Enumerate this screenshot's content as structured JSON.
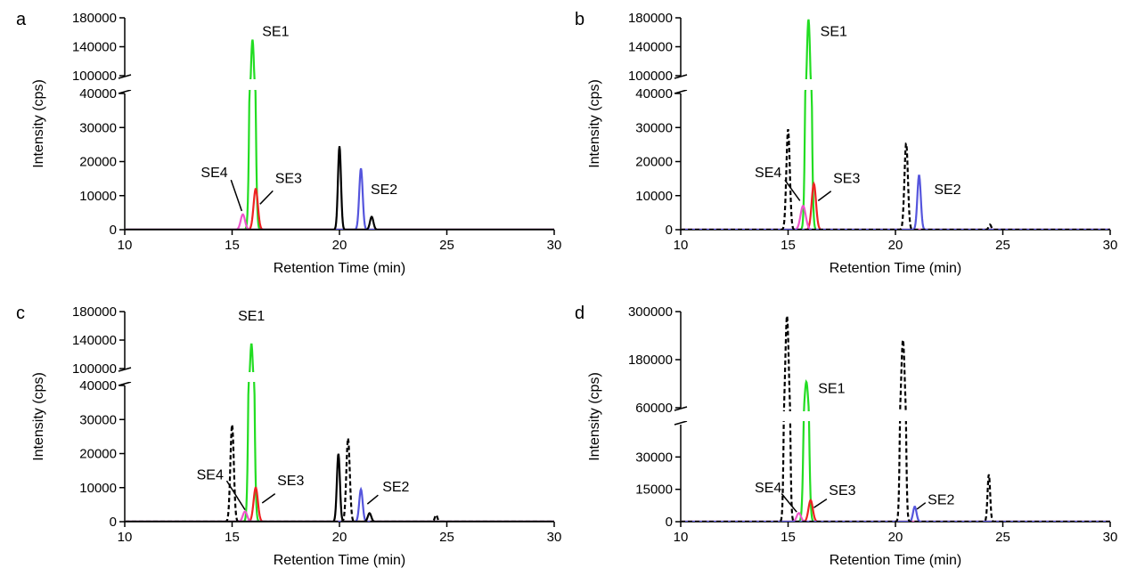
{
  "chart_data": [
    {
      "panel": "a",
      "type": "line",
      "xlabel": "Retention Time (min)",
      "ylabel": "Intensity (cps)",
      "xlim": [
        10,
        30
      ],
      "x_ticks": [
        "10",
        "15",
        "20",
        "25",
        "30"
      ],
      "y_axis_break": true,
      "y_lower": {
        "range": [
          0,
          40000
        ],
        "ticks": [
          "0",
          "10000",
          "20000",
          "30000",
          "40000"
        ]
      },
      "y_upper": {
        "range": [
          100000,
          180000
        ],
        "ticks": [
          "100000",
          "140000",
          "180000"
        ]
      },
      "series": [
        {
          "color": "#22dd22",
          "dashed": false,
          "peaks": [
            {
              "x": 15.95,
              "y": 150000,
              "w": 0.09
            }
          ]
        },
        {
          "color": "#ee2222",
          "dashed": false,
          "peaks": [
            {
              "x": 16.1,
              "y": 12000,
              "w": 0.1
            }
          ]
        },
        {
          "color": "#ee55cc",
          "dashed": false,
          "peaks": [
            {
              "x": 15.5,
              "y": 4500,
              "w": 0.1
            }
          ]
        },
        {
          "color": "#5555dd",
          "dashed": false,
          "peaks": [
            {
              "x": 21.0,
              "y": 18000,
              "w": 0.08
            }
          ]
        },
        {
          "color": "#000000",
          "dashed": false,
          "peaks": [
            {
              "x": 20.0,
              "y": 24500,
              "w": 0.07
            },
            {
              "x": 21.5,
              "y": 3800,
              "w": 0.08
            }
          ]
        }
      ],
      "annotations": [
        {
          "text": "SE1",
          "x": 16.4,
          "y": 162000,
          "anchor": "start"
        },
        {
          "text": "SE2",
          "x": 21.45,
          "y": 12000,
          "anchor": "start"
        },
        {
          "text": "SE3",
          "x": 17.0,
          "y": 15300,
          "anchor": "start",
          "line": [
            16.9,
            11400,
            16.3,
            7500
          ]
        },
        {
          "text": "SE4",
          "x": 14.8,
          "y": 17000,
          "anchor": "end",
          "line": [
            14.95,
            14600,
            15.45,
            5500
          ]
        }
      ]
    },
    {
      "panel": "b",
      "type": "line",
      "xlabel": "Retention Time (min)",
      "ylabel": "Intensity (cps)",
      "xlim": [
        10,
        30
      ],
      "x_ticks": [
        "10",
        "15",
        "20",
        "25",
        "30"
      ],
      "y_axis_break": true,
      "y_lower": {
        "range": [
          0,
          40000
        ],
        "ticks": [
          "0",
          "10000",
          "20000",
          "30000",
          "40000"
        ]
      },
      "y_upper": {
        "range": [
          100000,
          180000
        ],
        "ticks": [
          "100000",
          "140000",
          "180000"
        ]
      },
      "series": [
        {
          "color": "#22dd22",
          "dashed": false,
          "peaks": [
            {
              "x": 15.95,
              "y": 178000,
              "w": 0.09
            }
          ]
        },
        {
          "color": "#ee2222",
          "dashed": false,
          "peaks": [
            {
              "x": 16.2,
              "y": 13500,
              "w": 0.1
            }
          ]
        },
        {
          "color": "#ee55cc",
          "dashed": false,
          "peaks": [
            {
              "x": 15.7,
              "y": 7000,
              "w": 0.12
            }
          ]
        },
        {
          "color": "#5555dd",
          "dashed": false,
          "peaks": [
            {
              "x": 21.1,
              "y": 16000,
              "w": 0.08
            }
          ]
        },
        {
          "color": "#000000",
          "dashed": true,
          "peaks": [
            {
              "x": 15.0,
              "y": 29500,
              "w": 0.08
            },
            {
              "x": 20.5,
              "y": 25500,
              "w": 0.08
            },
            {
              "x": 24.4,
              "y": 1500,
              "w": 0.06
            }
          ]
        }
      ],
      "annotations": [
        {
          "text": "SE1",
          "x": 16.5,
          "y": 162000,
          "anchor": "start"
        },
        {
          "text": "SE2",
          "x": 21.8,
          "y": 12000,
          "anchor": "start"
        },
        {
          "text": "SE3",
          "x": 17.1,
          "y": 15300,
          "anchor": "start",
          "line": [
            17.0,
            11300,
            16.4,
            8500
          ]
        },
        {
          "text": "SE4",
          "x": 14.7,
          "y": 17000,
          "anchor": "end",
          "line": [
            14.85,
            14600,
            15.55,
            8500
          ]
        }
      ]
    },
    {
      "panel": "c",
      "type": "line",
      "xlabel": "Retention Time (min)",
      "ylabel": "Intensity (cps)",
      "xlim": [
        10,
        30
      ],
      "x_ticks": [
        "10",
        "15",
        "20",
        "25",
        "30"
      ],
      "y_axis_break": true,
      "y_lower": {
        "range": [
          0,
          40000
        ],
        "ticks": [
          "0",
          "10000",
          "20000",
          "30000",
          "40000"
        ]
      },
      "y_upper": {
        "range": [
          100000,
          180000
        ],
        "ticks": [
          "100000",
          "140000",
          "180000"
        ]
      },
      "series": [
        {
          "color": "#22dd22",
          "dashed": false,
          "peaks": [
            {
              "x": 15.9,
              "y": 135000,
              "w": 0.09
            }
          ]
        },
        {
          "color": "#ee2222",
          "dashed": false,
          "peaks": [
            {
              "x": 16.1,
              "y": 10000,
              "w": 0.1
            }
          ]
        },
        {
          "color": "#ee55cc",
          "dashed": false,
          "peaks": [
            {
              "x": 15.6,
              "y": 3000,
              "w": 0.1
            }
          ]
        },
        {
          "color": "#5555dd",
          "dashed": false,
          "peaks": [
            {
              "x": 21.0,
              "y": 9500,
              "w": 0.08
            }
          ]
        },
        {
          "color": "#000000",
          "dashed": false,
          "peaks": [
            {
              "x": 19.95,
              "y": 20000,
              "w": 0.07
            },
            {
              "x": 21.4,
              "y": 2500,
              "w": 0.08
            }
          ]
        },
        {
          "color": "#000000",
          "dashed": true,
          "peaks": [
            {
              "x": 15.0,
              "y": 28500,
              "w": 0.08
            },
            {
              "x": 20.4,
              "y": 24500,
              "w": 0.08
            },
            {
              "x": 24.5,
              "y": 2000,
              "w": 0.06
            }
          ]
        }
      ],
      "annotations": [
        {
          "text": "SE1",
          "x": 15.9,
          "y": 175000,
          "anchor": "middle"
        },
        {
          "text": "SE2",
          "x": 22.0,
          "y": 10500,
          "anchor": "start"
        },
        {
          "text": "SE3",
          "x": 17.1,
          "y": 12300,
          "anchor": "start",
          "line": [
            17.0,
            8200,
            16.4,
            5500
          ]
        },
        {
          "text": "SE4",
          "x": 14.6,
          "y": 14000,
          "anchor": "end",
          "line": [
            14.75,
            12000,
            15.6,
            3500
          ]
        },
        {
          "line_only": true,
          "line": [
            21.8,
            7800,
            21.3,
            5200
          ]
        }
      ]
    },
    {
      "panel": "d",
      "type": "line",
      "xlabel": "Retention Time (min)",
      "ylabel": "Intensity (cps)",
      "xlim": [
        10,
        30
      ],
      "x_ticks": [
        "10",
        "15",
        "20",
        "25",
        "30"
      ],
      "y_axis_break": true,
      "y_lower": {
        "range": [
          0,
          45000
        ],
        "ticks": [
          "0",
          "15000",
          "30000"
        ]
      },
      "y_upper": {
        "range": [
          60000,
          300000
        ],
        "ticks": [
          "60000",
          "180000",
          "300000"
        ]
      },
      "series": [
        {
          "color": "#22dd22",
          "dashed": false,
          "peaks": [
            {
              "x": 15.85,
              "y": 125000,
              "w": 0.09
            }
          ]
        },
        {
          "color": "#ee2222",
          "dashed": false,
          "peaks": [
            {
              "x": 16.05,
              "y": 10000,
              "w": 0.1
            }
          ]
        },
        {
          "color": "#ee55cc",
          "dashed": false,
          "peaks": [
            {
              "x": 15.5,
              "y": 4000,
              "w": 0.1
            }
          ]
        },
        {
          "color": "#5555dd",
          "dashed": false,
          "peaks": [
            {
              "x": 20.9,
              "y": 7000,
              "w": 0.08
            }
          ]
        },
        {
          "color": "#000000",
          "dashed": true,
          "peaks": [
            {
              "x": 14.95,
              "y": 290000,
              "w": 0.08
            },
            {
              "x": 20.35,
              "y": 230000,
              "w": 0.08
            },
            {
              "x": 24.35,
              "y": 22000,
              "w": 0.06
            }
          ]
        }
      ],
      "annotations": [
        {
          "text": "SE1",
          "x": 16.4,
          "y": 110000,
          "anchor": "start"
        },
        {
          "text": "SE2",
          "x": 21.5,
          "y": 10500,
          "anchor": "start"
        },
        {
          "text": "SE3",
          "x": 16.9,
          "y": 14800,
          "anchor": "start",
          "line": [
            16.8,
            10500,
            16.2,
            6500
          ]
        },
        {
          "text": "SE4",
          "x": 14.7,
          "y": 16000,
          "anchor": "end",
          "line": [
            14.7,
            13000,
            15.4,
            4500
          ]
        },
        {
          "line_only": true,
          "line": [
            21.4,
            8800,
            21.0,
            5800
          ]
        }
      ]
    }
  ]
}
